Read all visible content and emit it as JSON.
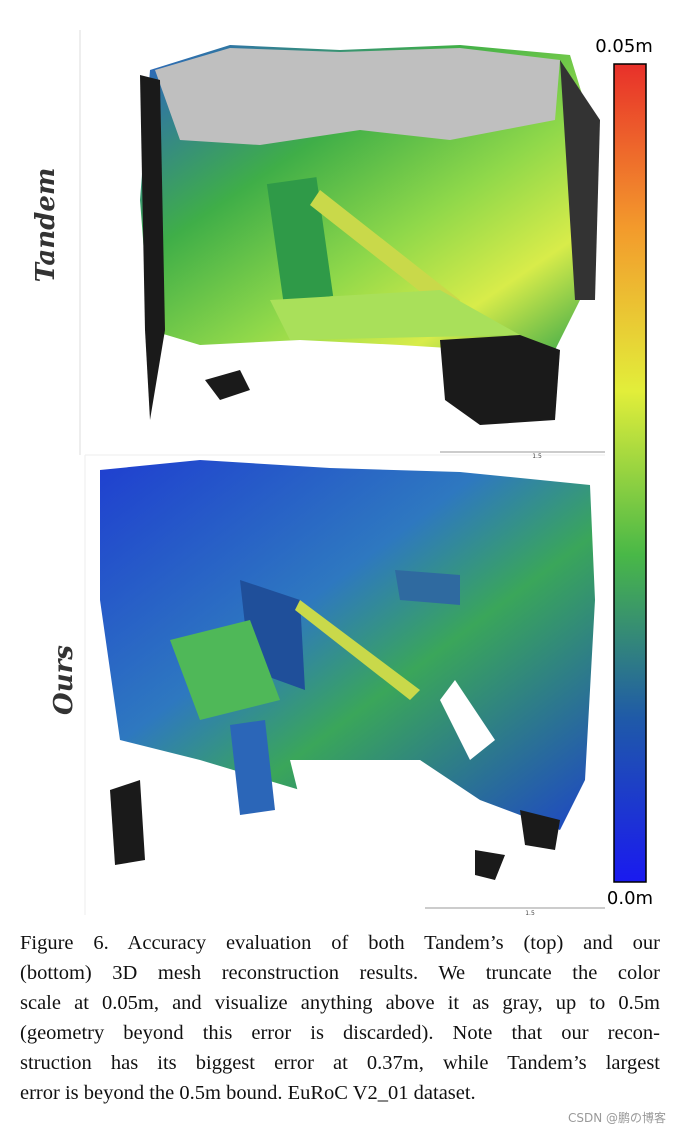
{
  "figure": {
    "row_labels": [
      "Tandem",
      "Ours"
    ],
    "colorbar": {
      "max_label": "0.05m",
      "min_label": "0.0m"
    },
    "scale_labels": [
      "1.5",
      "1.5"
    ]
  },
  "caption": {
    "lines": [
      "Figure 6.   Accuracy evaluation of both Tandem’s (top) and our",
      "(bottom) 3D mesh reconstruction results.  We truncate the color",
      "scale at 0.05m, and visualize anything above it as gray, up to 0.5m",
      "(geometry beyond this error is discarded).  Note that our recon-",
      "struction has its biggest error at 0.37m, while Tandem’s largest",
      "error is beyond the 0.5m bound. EuRoC V2_01 dataset."
    ]
  },
  "watermark": "CSDN @鹏の博客"
}
